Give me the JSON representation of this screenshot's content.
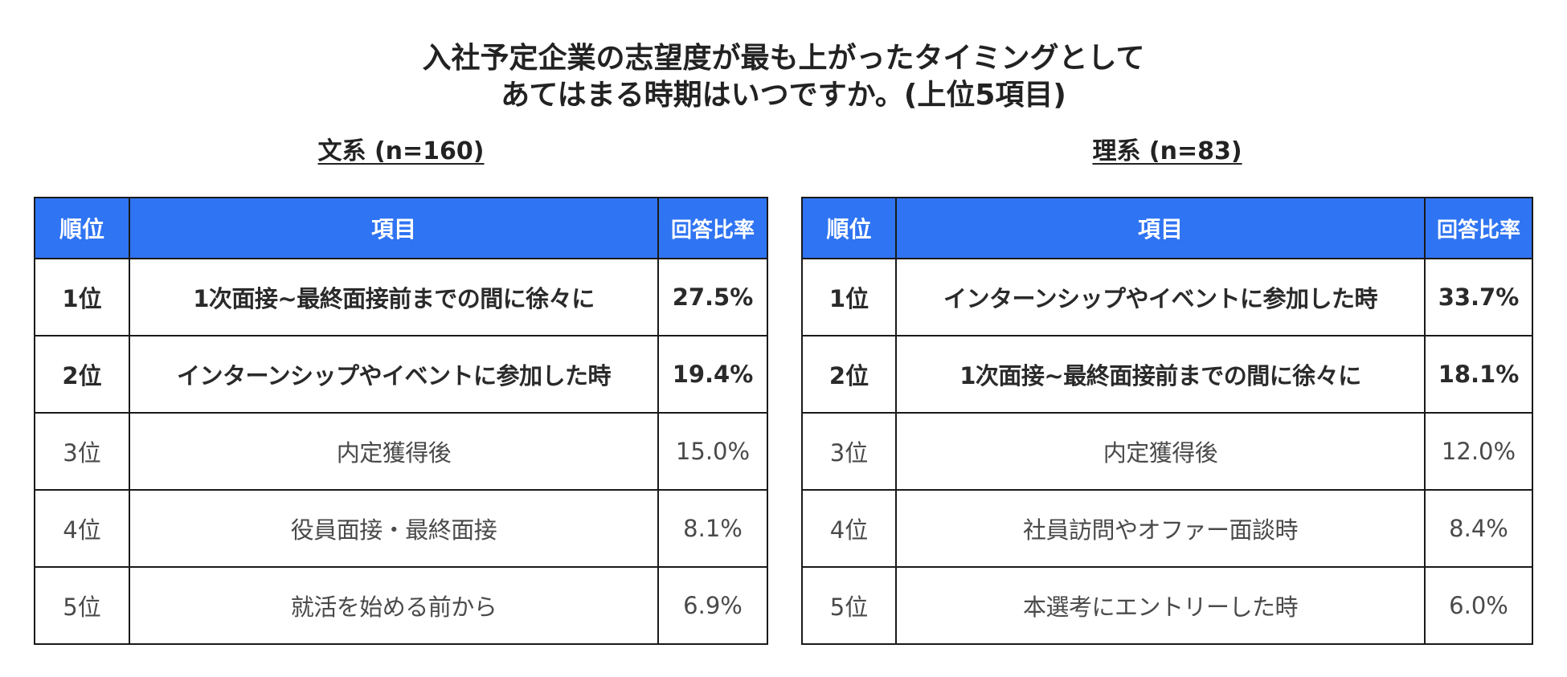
{
  "title": {
    "line1": "入社予定企業の志望度が最も上がったタイミングとして",
    "line2": "あてはまる時期はいつですか。(上位5項目)"
  },
  "colors": {
    "header_bg": "#2f74f2",
    "header_text": "#ffffff",
    "border": "#1a1a1a"
  },
  "chart_data": [
    {
      "type": "table",
      "title": "文系 (n=160)",
      "columns": [
        "順位",
        "項目",
        "回答比率"
      ],
      "rows": [
        {
          "rank": "1位",
          "item": "1次面接~最終面接前までの間に徐々に",
          "rate": "27.5%",
          "value": 27.5,
          "emphasis": true
        },
        {
          "rank": "2位",
          "item": "インターンシップやイベントに参加した時",
          "rate": "19.4%",
          "value": 19.4,
          "emphasis": true
        },
        {
          "rank": "3位",
          "item": "内定獲得後",
          "rate": "15.0%",
          "value": 15.0,
          "emphasis": false
        },
        {
          "rank": "4位",
          "item": "役員面接・最終面接",
          "rate": "8.1%",
          "value": 8.1,
          "emphasis": false
        },
        {
          "rank": "5位",
          "item": "就活を始める前から",
          "rate": "6.9%",
          "value": 6.9,
          "emphasis": false
        }
      ]
    },
    {
      "type": "table",
      "title": "理系 (n=83)",
      "columns": [
        "順位",
        "項目",
        "回答比率"
      ],
      "rows": [
        {
          "rank": "1位",
          "item": "インターンシップやイベントに参加した時",
          "rate": "33.7%",
          "value": 33.7,
          "emphasis": true
        },
        {
          "rank": "2位",
          "item": "1次面接~最終面接前までの間に徐々に",
          "rate": "18.1%",
          "value": 18.1,
          "emphasis": true
        },
        {
          "rank": "3位",
          "item": "内定獲得後",
          "rate": "12.0%",
          "value": 12.0,
          "emphasis": false
        },
        {
          "rank": "4位",
          "item": "社員訪問やオファー面談時",
          "rate": "8.4%",
          "value": 8.4,
          "emphasis": false
        },
        {
          "rank": "5位",
          "item": "本選考にエントリーした時",
          "rate": "6.0%",
          "value": 6.0,
          "emphasis": false
        }
      ]
    }
  ]
}
